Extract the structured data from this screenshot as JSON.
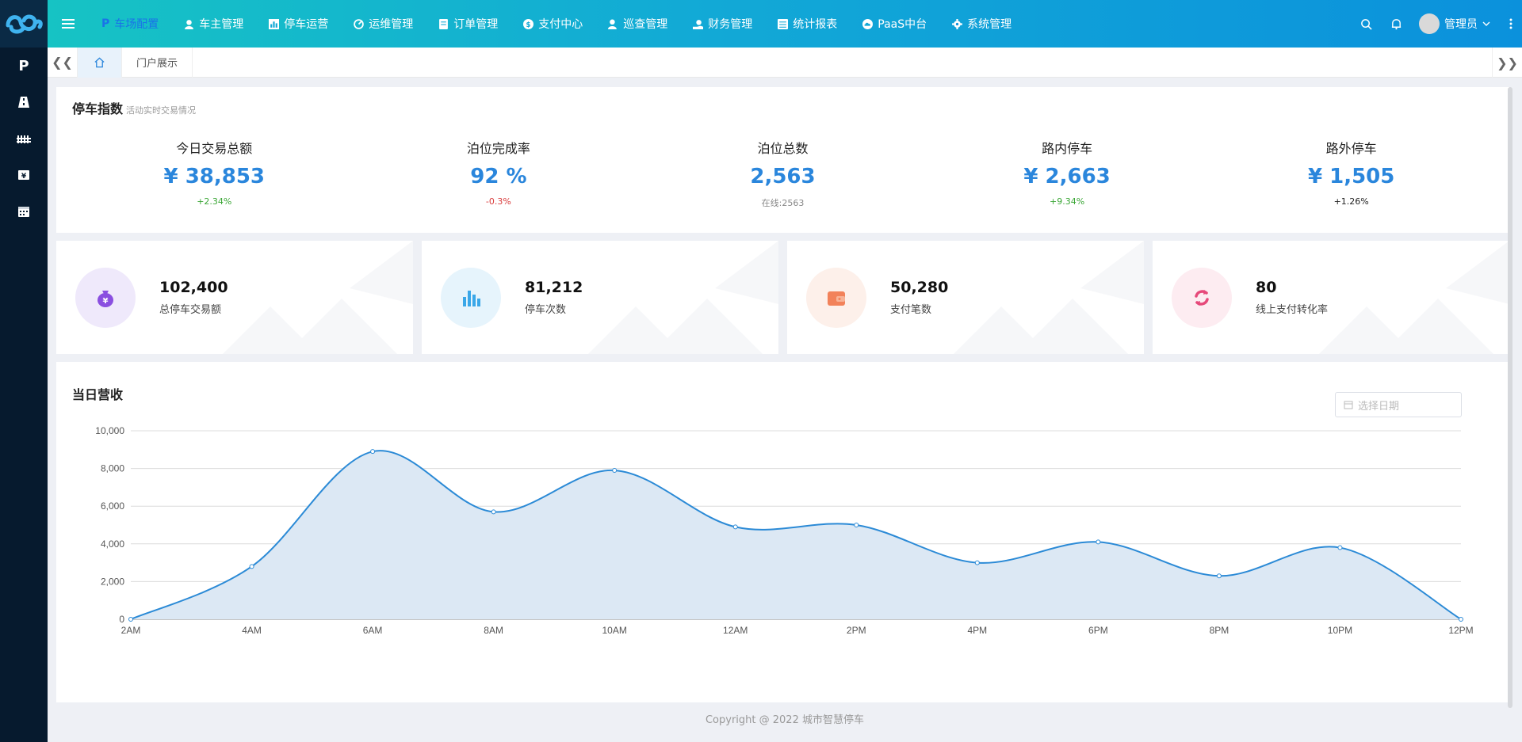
{
  "nav": {
    "items": [
      {
        "label": "车场配置",
        "icon": "parking-icon"
      },
      {
        "label": "车主管理",
        "icon": "user-icon"
      },
      {
        "label": "停车运营",
        "icon": "chart-icon"
      },
      {
        "label": "运维管理",
        "icon": "dashboard-icon"
      },
      {
        "label": "订单管理",
        "icon": "document-icon"
      },
      {
        "label": "支付中心",
        "icon": "coin-icon"
      },
      {
        "label": "巡查管理",
        "icon": "person-icon"
      },
      {
        "label": "财务管理",
        "icon": "hand-money-icon"
      },
      {
        "label": "统计报表",
        "icon": "table-icon"
      },
      {
        "label": "PaaS中台",
        "icon": "cloud-icon"
      },
      {
        "label": "系统管理",
        "icon": "gear-icon"
      }
    ],
    "active_index": 0,
    "user": "管理员"
  },
  "rail": {
    "items": [
      {
        "label": "P",
        "icon": "parking-icon"
      },
      {
        "label": "",
        "icon": "road-icon"
      },
      {
        "label": "",
        "icon": "fence-icon"
      },
      {
        "label": "",
        "icon": "yen-card-icon"
      },
      {
        "label": "",
        "icon": "calendar-icon"
      }
    ]
  },
  "tabs": {
    "items": [
      "门户展示"
    ]
  },
  "index_card": {
    "title": "停车指数",
    "subtitle": "活动实时交易情况",
    "metrics": [
      {
        "label": "今日交易总额",
        "value": "¥ 38,853",
        "change": "+2.34%",
        "trend": "up"
      },
      {
        "label": "泊位完成率",
        "value": "92 %",
        "change": "-0.3%",
        "trend": "down"
      },
      {
        "label": "泊位总数",
        "value": "2,563",
        "change": "在线:2563",
        "trend": "neutral"
      },
      {
        "label": "路内停车",
        "value": "¥ 2,663",
        "change": "+9.34%",
        "trend": "up"
      },
      {
        "label": "路外停车",
        "value": "¥ 1,505",
        "change": "+1.26%",
        "trend": "dark"
      }
    ]
  },
  "stats": [
    {
      "value": "102,400",
      "label": "总停车交易额",
      "icon": "money-bag-icon",
      "bg": "#efe9fb",
      "fg": "#8a4fe0"
    },
    {
      "value": "81,212",
      "label": "停车次数",
      "icon": "bar-chart-icon",
      "bg": "#e6f4fc",
      "fg": "#3aa7e8"
    },
    {
      "value": "50,280",
      "label": "支付笔数",
      "icon": "wallet-icon",
      "bg": "#fdf0ea",
      "fg": "#f2825a"
    },
    {
      "value": "80",
      "label": "线上支付转化率",
      "icon": "refresh-icon",
      "bg": "#fdecf1",
      "fg": "#e6497a"
    }
  ],
  "revenue": {
    "title": "当日营收",
    "date_placeholder": "选择日期"
  },
  "chart_data": {
    "type": "area",
    "title": "当日营收",
    "categories": [
      "2AM",
      "4AM",
      "6AM",
      "8AM",
      "10AM",
      "12AM",
      "2PM",
      "4PM",
      "6PM",
      "8PM",
      "10PM",
      "12PM"
    ],
    "values": [
      0,
      2800,
      8900,
      5700,
      7900,
      4900,
      5000,
      3000,
      4100,
      2300,
      3800,
      0
    ],
    "ylim": [
      0,
      10000
    ],
    "yticks": [
      "0",
      "2,000",
      "4,000",
      "6,000",
      "8,000",
      "10,000"
    ],
    "ytick_values": [
      0,
      2000,
      4000,
      6000,
      8000,
      10000
    ],
    "line_color": "#2b8ad6",
    "fill_color": "#dce8f4",
    "grid": true
  },
  "footer": "Copyright @ 2022 城市智慧停车"
}
